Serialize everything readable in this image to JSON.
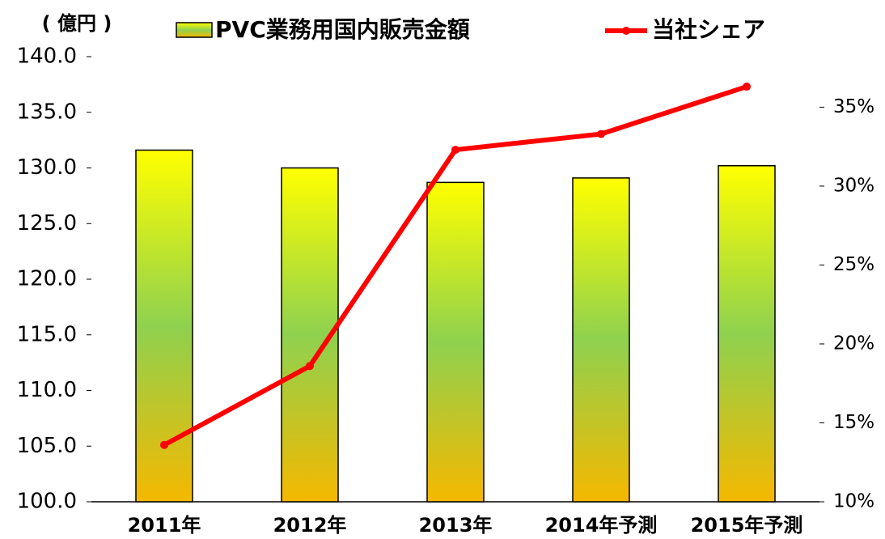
{
  "chart_data": {
    "type": "bar_line",
    "y_label": "( 億円 )",
    "categories": [
      "2011年",
      "2012年",
      "2013年",
      "2014年予測",
      "2015年予測"
    ],
    "series": [
      {
        "name": "PVC業務用国内販売金額",
        "type": "bar",
        "color": "#9acd32",
        "values": [
          131.6,
          130.0,
          128.7,
          129.1,
          130.2
        ]
      },
      {
        "name": "当社シェア",
        "type": "line",
        "axis": "y2",
        "color": "#ff0000",
        "values": [
          13.6,
          18.6,
          32.3,
          33.3,
          36.3
        ]
      }
    ],
    "ylim": [
      100,
      140
    ],
    "yticks": [
      {
        "value": 100,
        "label": "100.0"
      },
      {
        "value": 105,
        "label": "105.0"
      },
      {
        "value": 110,
        "label": "110.0"
      },
      {
        "value": 115,
        "label": "115.0"
      },
      {
        "value": 120,
        "label": "120.0"
      },
      {
        "value": 125,
        "label": "125.0"
      },
      {
        "value": 130,
        "label": "130.0"
      },
      {
        "value": 135,
        "label": "135.0"
      },
      {
        "value": 140,
        "label": "140.0"
      }
    ],
    "y2lim": [
      10,
      38.2
    ],
    "y2ticks": [
      {
        "value": 10,
        "label": "10%"
      },
      {
        "value": 15,
        "label": "15%"
      },
      {
        "value": 20,
        "label": "20%"
      },
      {
        "value": 25,
        "label": "25%"
      },
      {
        "value": 30,
        "label": "30%"
      },
      {
        "value": 35,
        "label": "35%"
      }
    ]
  }
}
